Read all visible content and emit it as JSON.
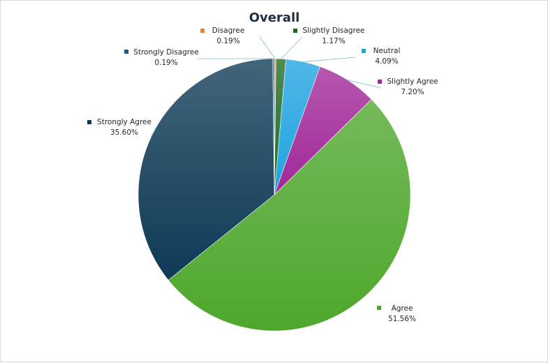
{
  "chart_data": {
    "type": "pie",
    "title": "Overall",
    "slices": [
      {
        "label": "Disagree",
        "value": 0.19,
        "display": "0.19%",
        "color": "#ed7d31"
      },
      {
        "label": "Slightly Disagree",
        "value": 1.17,
        "display": "1.17%",
        "color": "#1e6b22"
      },
      {
        "label": "Neutral",
        "value": 4.09,
        "display": "4.09%",
        "color": "#1fa3e0"
      },
      {
        "label": "Slightly Agree",
        "value": 7.2,
        "display": "7.20%",
        "color": "#a12798"
      },
      {
        "label": "Agree",
        "value": 51.56,
        "display": "51.56%",
        "color": "#4ea72c"
      },
      {
        "label": "Strongly Agree",
        "value": 35.6,
        "display": "35.60%",
        "color": "#0e3a55"
      },
      {
        "label": "Strongly Disagree",
        "value": 0.19,
        "display": "0.19%",
        "color": "#156082"
      }
    ],
    "start_angle_deg": 0,
    "direction": "clockwise",
    "legend": "none",
    "data_labels": "outside-with-leader-lines"
  }
}
